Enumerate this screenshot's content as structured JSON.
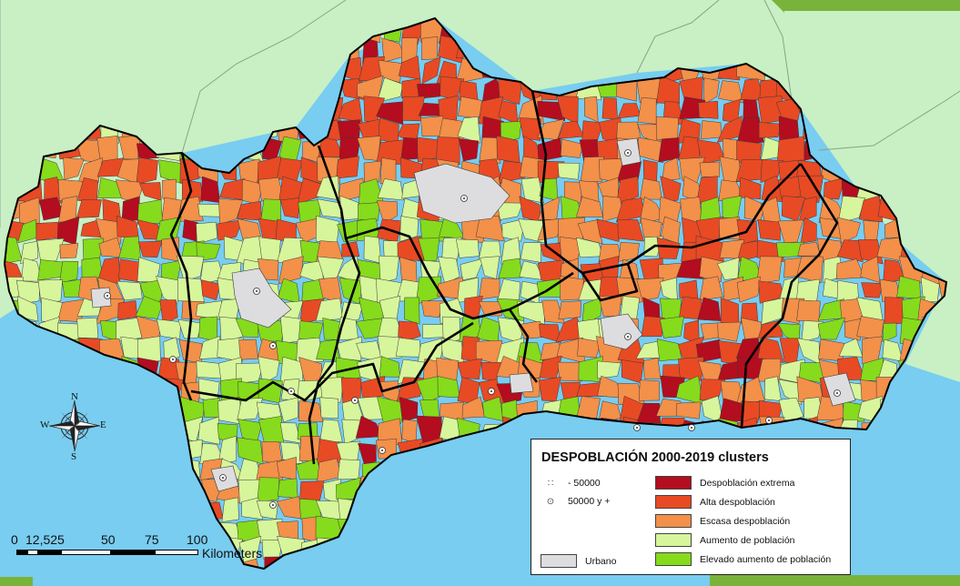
{
  "legend": {
    "title": "DESPOBLACIÓN 2000-2019 clusters",
    "population_symbols": [
      {
        "symbol": "∷",
        "label": "- 50000"
      },
      {
        "symbol": "⊙",
        "label": "50000 y +"
      }
    ],
    "urban": {
      "label": "Urbano",
      "color": "#dddde0"
    },
    "classes": [
      {
        "label": "Despoblación extrema",
        "color": "#b30d1f"
      },
      {
        "label": "Alta despoblación",
        "color": "#e84a24"
      },
      {
        "label": "Escasa despoblación",
        "color": "#f3904a"
      },
      {
        "label": "Aumento de población",
        "color": "#d7f59b"
      },
      {
        "label": "Elevado aumento de población",
        "color": "#86db1c"
      }
    ]
  },
  "scale_bar": {
    "ticks": [
      "0",
      "12,525",
      "50",
      "75",
      "100"
    ],
    "unit": "Kilometers"
  },
  "compass": {
    "n": "N",
    "s": "S",
    "e": "E",
    "w": "W"
  },
  "colors": {
    "sea": "#78cdf0",
    "land": "#c8f0c4",
    "border": "#000000"
  }
}
